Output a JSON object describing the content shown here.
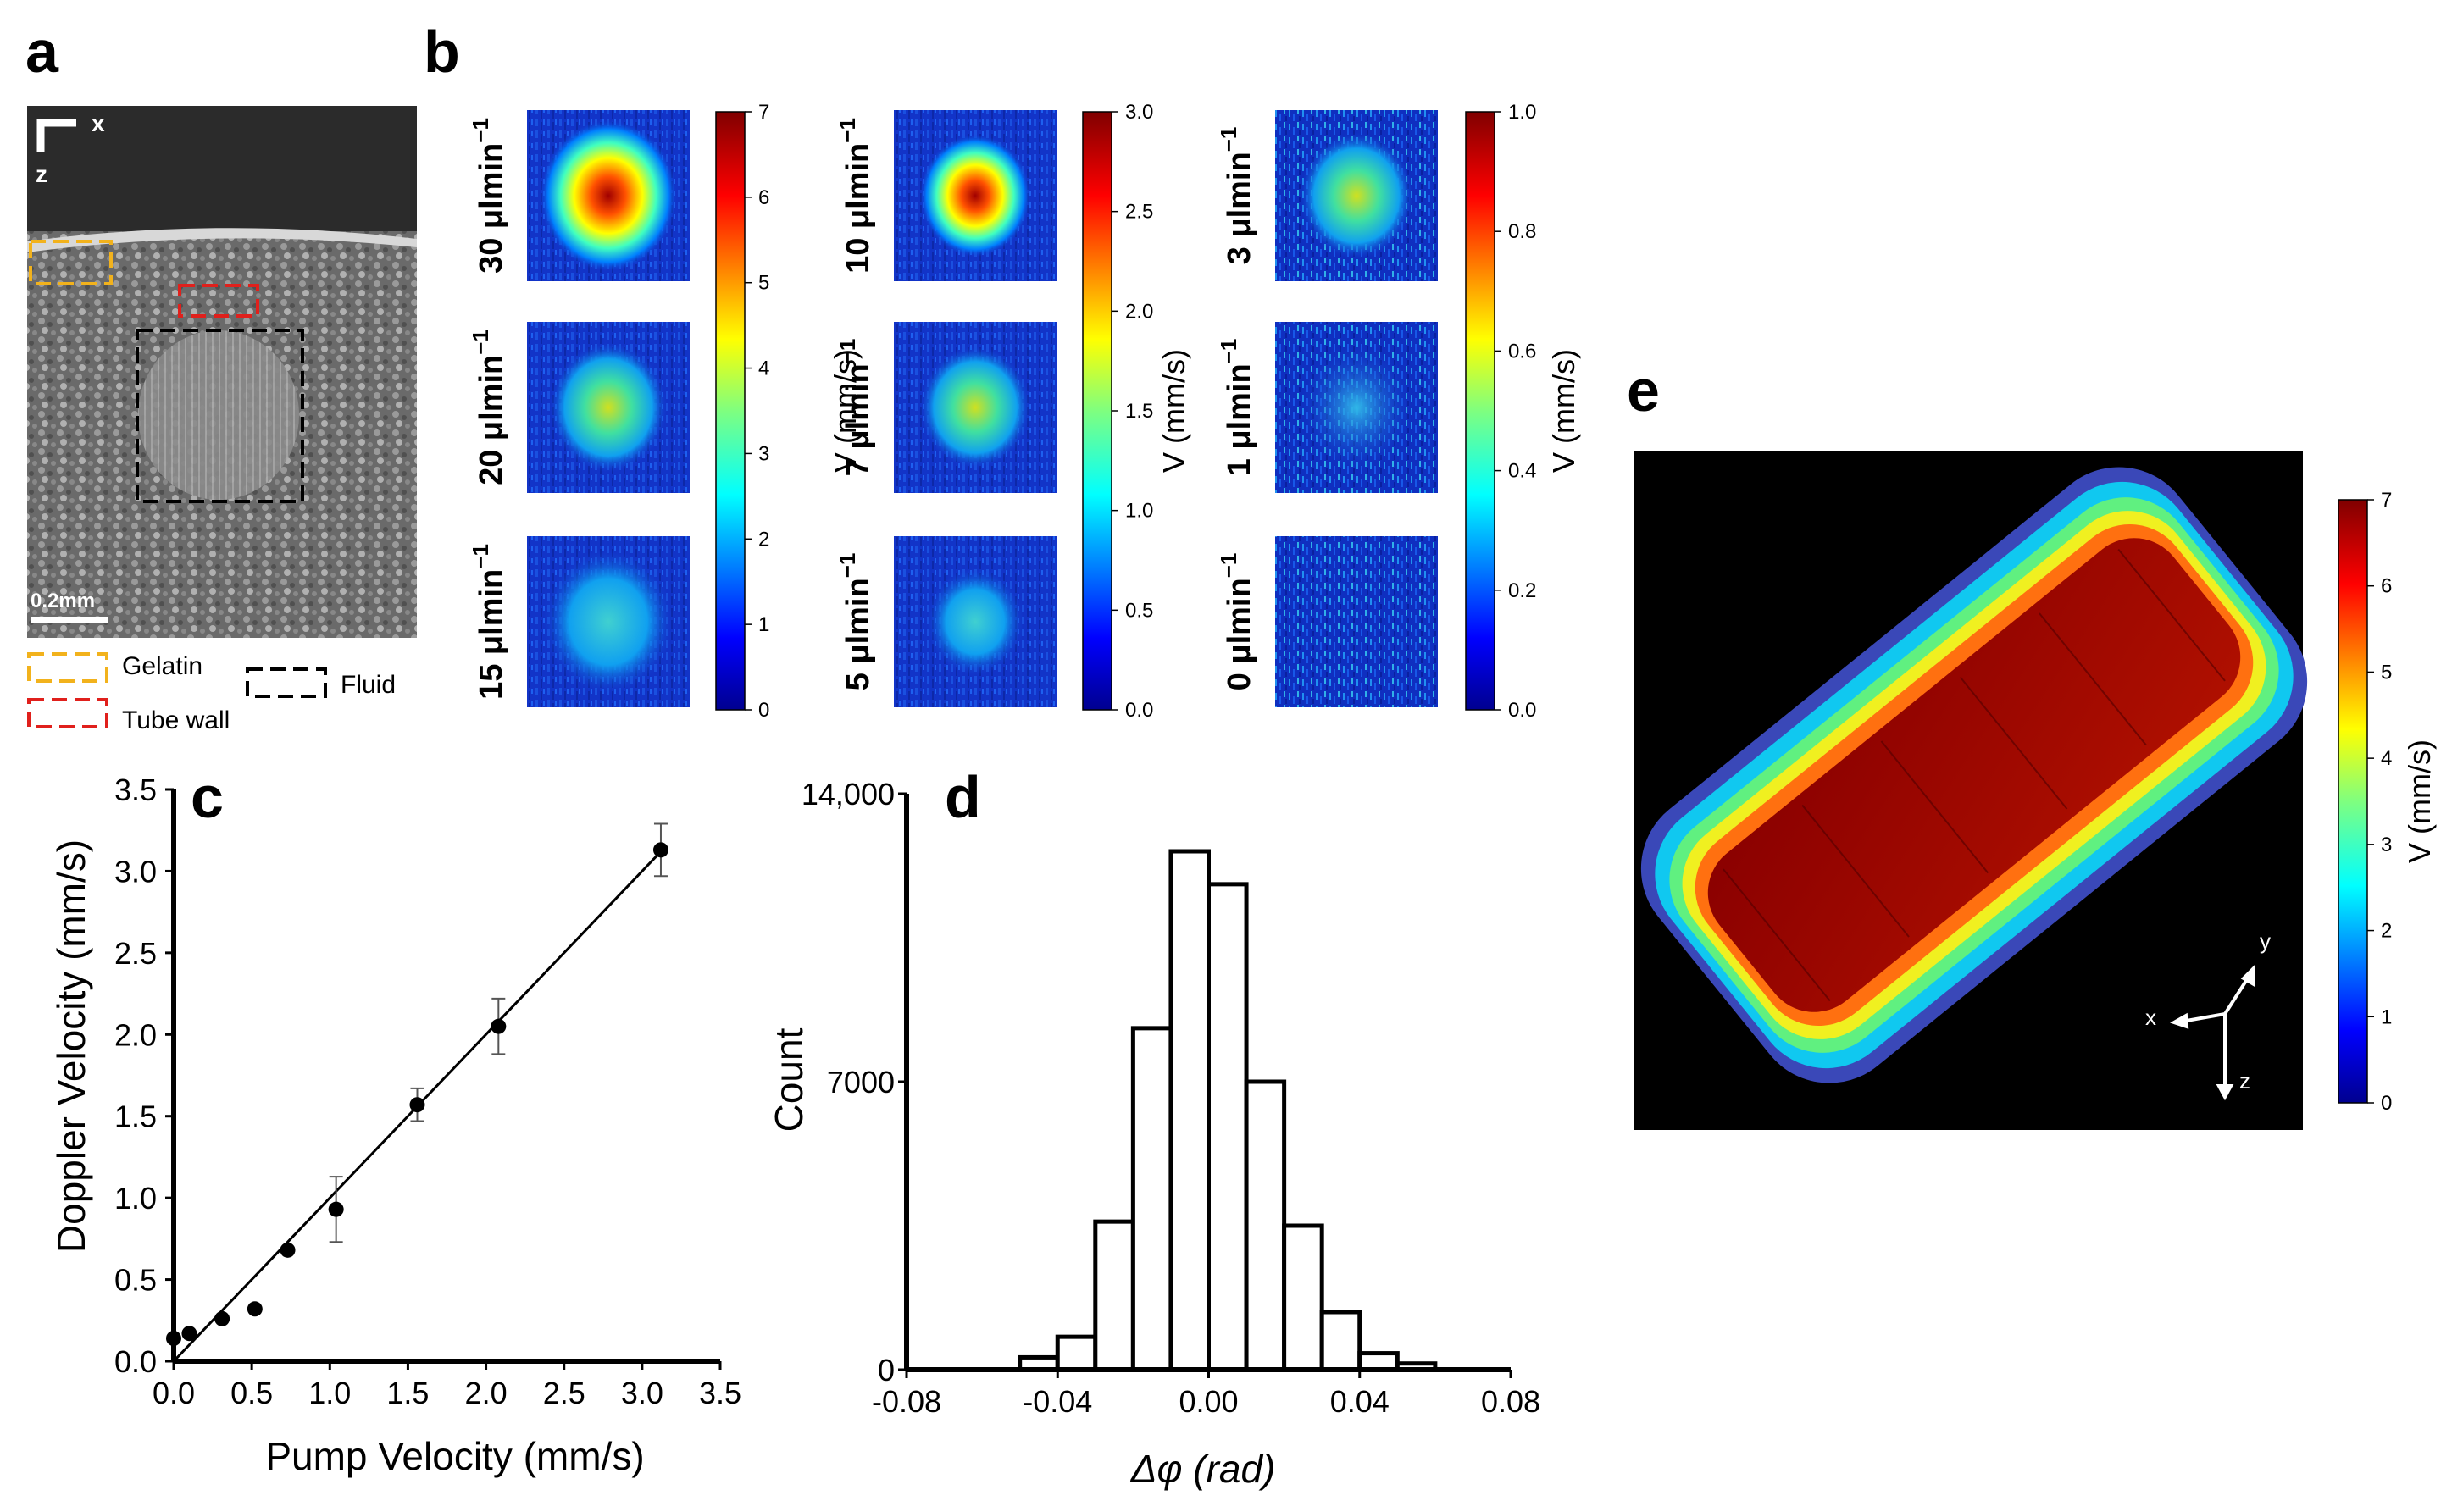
{
  "panels": {
    "a": "a",
    "b": "b",
    "c": "c",
    "d": "d",
    "e": "e"
  },
  "panel_a": {
    "axis_x": "x",
    "axis_z": "z",
    "scalebar": "0.2mm",
    "legend": [
      {
        "label": "Gelatin",
        "color": "#f2b21c"
      },
      {
        "label": "Tube wall",
        "color": "#e0201c"
      },
      {
        "label": "Fluid",
        "color": "#000000"
      }
    ]
  },
  "panel_b": {
    "columns": [
      {
        "rows": [
          {
            "flow": "30 μlmin",
            "exp": "−1",
            "peak": 1.0,
            "spread": 0.42
          },
          {
            "flow": "20 μlmin",
            "exp": "−1",
            "peak": 0.62,
            "spread": 0.36
          },
          {
            "flow": "15 μlmin",
            "exp": "−1",
            "peak": 0.45,
            "spread": 0.4
          }
        ],
        "colorbar": {
          "label": "V (mm/s)",
          "ticks": [
            "7",
            "6",
            "5",
            "4",
            "3",
            "2",
            "1",
            "0"
          ]
        }
      },
      {
        "rows": [
          {
            "flow": "10 μlmin",
            "exp": "−1",
            "peak": 1.0,
            "spread": 0.34
          },
          {
            "flow": "7 μlmin",
            "exp": "−1",
            "peak": 0.58,
            "spread": 0.34
          },
          {
            "flow": "5 μlmin",
            "exp": "−1",
            "peak": 0.42,
            "spread": 0.3
          }
        ],
        "colorbar": {
          "label": "V (mm/s)",
          "ticks": [
            "3.0",
            "2.5",
            "2.0",
            "1.5",
            "1.0",
            "0.5",
            "0.0"
          ]
        }
      },
      {
        "rows": [
          {
            "flow": "3 μlmin",
            "exp": "−1",
            "peak": 0.55,
            "spread": 0.35
          },
          {
            "flow": "1 μlmin",
            "exp": "−1",
            "peak": 0.35,
            "spread": 0.35
          },
          {
            "flow": "0 μlmin",
            "exp": "−1",
            "peak": 0.2,
            "spread": 0.0
          }
        ],
        "colorbar": {
          "label": "V (mm/s)",
          "ticks": [
            "1.0",
            "0.8",
            "0.6",
            "0.4",
            "0.2",
            "0.0"
          ]
        }
      }
    ]
  },
  "chart_data": [
    {
      "type": "scatter",
      "panel": "c",
      "title": "",
      "xlabel": "Pump Velocity (mm/s)",
      "ylabel": "Doppler Velocity (mm/s)",
      "xlim": [
        0,
        3.5
      ],
      "ylim": [
        0,
        3.5
      ],
      "xticks": [
        "0.0",
        "0.5",
        "1.0",
        "1.5",
        "2.0",
        "2.5",
        "3.0",
        "3.5"
      ],
      "yticks": [
        "0.0",
        "0.5",
        "1.0",
        "1.5",
        "2.0",
        "2.5",
        "3.0",
        "3.5"
      ],
      "points": [
        {
          "x": 0.0,
          "y": 0.14,
          "err": 0.0
        },
        {
          "x": 0.1,
          "y": 0.17,
          "err": 0.0
        },
        {
          "x": 0.31,
          "y": 0.26,
          "err": 0.0
        },
        {
          "x": 0.52,
          "y": 0.32,
          "err": 0.0
        },
        {
          "x": 0.73,
          "y": 0.68,
          "err": 0.0
        },
        {
          "x": 1.04,
          "y": 0.93,
          "err": 0.2
        },
        {
          "x": 1.56,
          "y": 1.57,
          "err": 0.1
        },
        {
          "x": 2.08,
          "y": 2.05,
          "err": 0.17
        },
        {
          "x": 3.12,
          "y": 3.13,
          "err": 0.16
        }
      ],
      "fit_line": [
        [
          0.0,
          0.0
        ],
        [
          3.12,
          3.12
        ]
      ]
    },
    {
      "type": "bar",
      "panel": "d",
      "title": "",
      "xlabel": "Δφ (rad)",
      "ylabel": "Count",
      "xlim": [
        -0.08,
        0.08
      ],
      "ylim": [
        0,
        14000
      ],
      "xticks": [
        "-0.08",
        "-0.04",
        "0.00",
        "0.04",
        "0.08"
      ],
      "yticks": [
        "0",
        "7000",
        "14,000"
      ],
      "bin_width": 0.01,
      "bins": [
        {
          "x0": -0.05,
          "count": 300
        },
        {
          "x0": -0.04,
          "count": 800
        },
        {
          "x0": -0.03,
          "count": 3600
        },
        {
          "x0": -0.02,
          "count": 8300
        },
        {
          "x0": -0.01,
          "count": 12600
        },
        {
          "x0": 0.0,
          "count": 11800
        },
        {
          "x0": 0.01,
          "count": 7000
        },
        {
          "x0": 0.02,
          "count": 3500
        },
        {
          "x0": 0.03,
          "count": 1400
        },
        {
          "x0": 0.04,
          "count": 400
        },
        {
          "x0": 0.05,
          "count": 150
        }
      ]
    }
  ],
  "panel_e": {
    "axes": {
      "x": "x",
      "y": "y",
      "z": "z"
    },
    "colorbar": {
      "label": "V (mm/s)",
      "ticks": [
        "7",
        "6",
        "5",
        "4",
        "3",
        "2",
        "1",
        "0"
      ]
    }
  }
}
